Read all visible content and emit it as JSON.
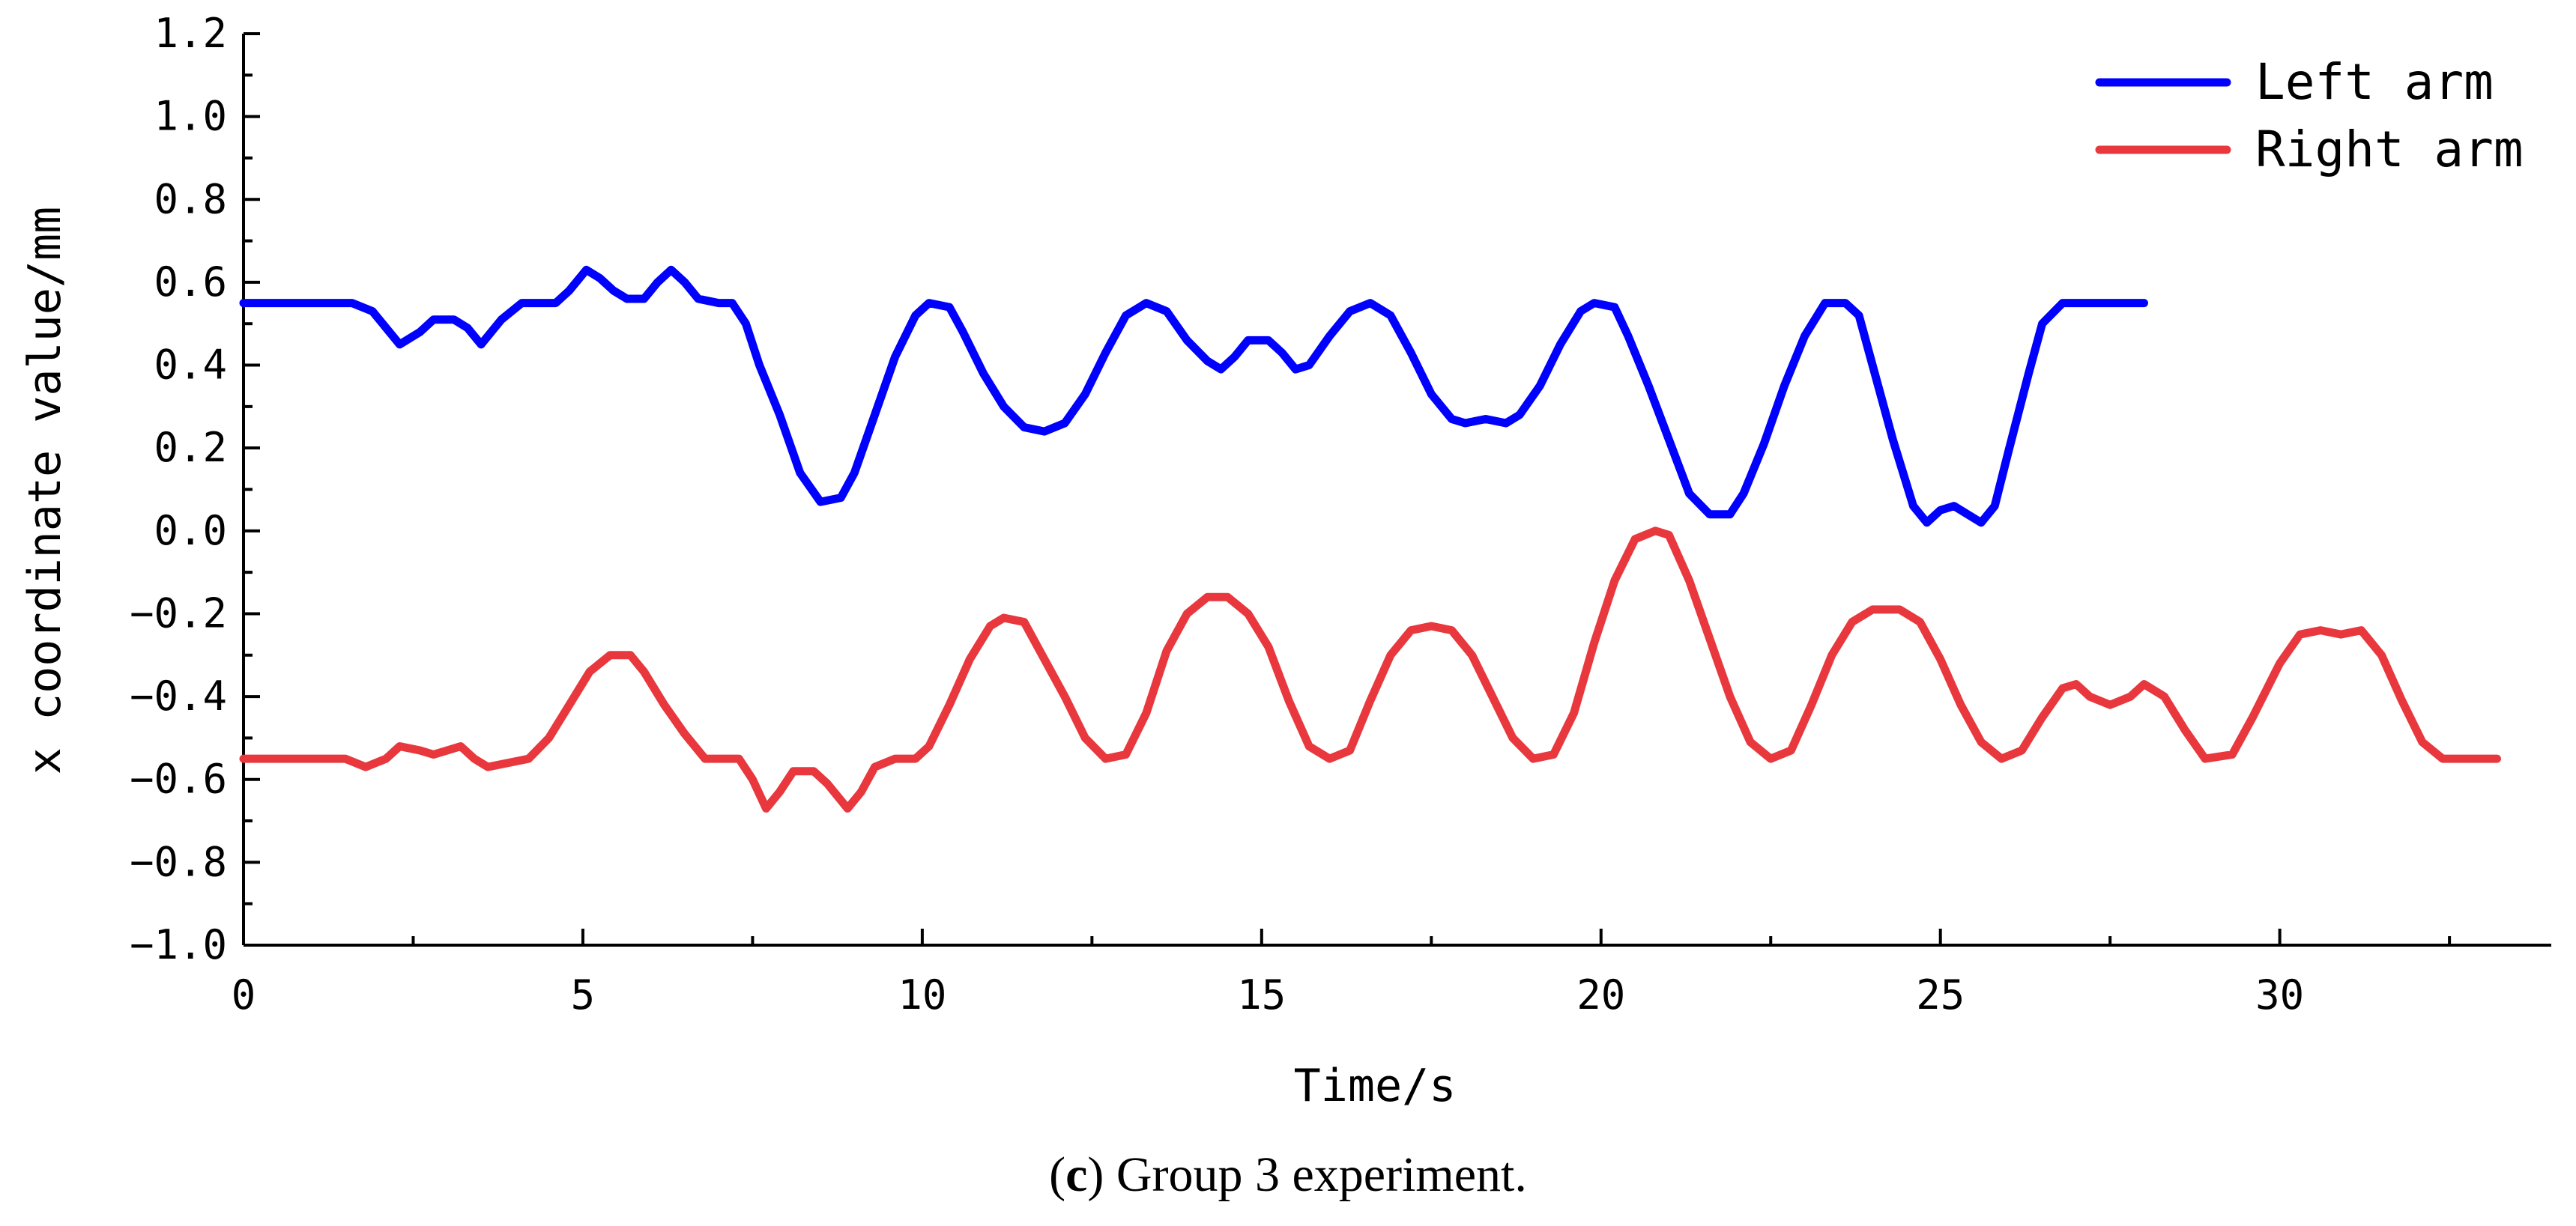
{
  "chart_data": {
    "type": "line",
    "title": "",
    "xlabel": "Time/s",
    "ylabel": "x coordinate value/mm",
    "xlim": [
      0,
      34
    ],
    "ylim": [
      -1.0,
      1.2
    ],
    "x_ticks": [
      0,
      5,
      10,
      15,
      20,
      25,
      30
    ],
    "x_tick_labels": [
      "0",
      "5",
      "10",
      "15",
      "20",
      "25",
      "30"
    ],
    "x_minor_ticks": [
      2.5,
      7.5,
      12.5,
      17.5,
      22.5,
      27.5,
      32.5
    ],
    "y_ticks": [
      -1.0,
      -0.8,
      -0.6,
      -0.4,
      -0.2,
      0.0,
      0.2,
      0.4,
      0.6,
      0.8,
      1.0,
      1.2
    ],
    "y_tick_labels": [
      "−1.0",
      "−0.8",
      "−0.6",
      "−0.4",
      "−0.2",
      "0.0",
      "0.2",
      "0.4",
      "0.6",
      "0.8",
      "1.0",
      "1.2"
    ],
    "y_minor_ticks": [
      -0.9,
      -0.7,
      -0.5,
      -0.3,
      -0.1,
      0.1,
      0.3,
      0.5,
      0.7,
      0.9,
      1.1
    ],
    "grid": false,
    "legend_position": "top-right",
    "series": [
      {
        "name": "Left arm",
        "color": "#0000ff",
        "points": [
          [
            0,
            0.55
          ],
          [
            1.6,
            0.55
          ],
          [
            1.9,
            0.53
          ],
          [
            2.3,
            0.45
          ],
          [
            2.6,
            0.48
          ],
          [
            2.8,
            0.51
          ],
          [
            3.1,
            0.51
          ],
          [
            3.3,
            0.49
          ],
          [
            3.5,
            0.45
          ],
          [
            3.8,
            0.51
          ],
          [
            4.1,
            0.55
          ],
          [
            4.6,
            0.55
          ],
          [
            4.8,
            0.58
          ],
          [
            5.05,
            0.63
          ],
          [
            5.25,
            0.61
          ],
          [
            5.45,
            0.58
          ],
          [
            5.65,
            0.56
          ],
          [
            5.9,
            0.56
          ],
          [
            6.1,
            0.6
          ],
          [
            6.3,
            0.63
          ],
          [
            6.5,
            0.6
          ],
          [
            6.7,
            0.56
          ],
          [
            7.0,
            0.55
          ],
          [
            7.2,
            0.55
          ],
          [
            7.4,
            0.5
          ],
          [
            7.6,
            0.4
          ],
          [
            7.9,
            0.28
          ],
          [
            8.2,
            0.14
          ],
          [
            8.5,
            0.07
          ],
          [
            8.8,
            0.08
          ],
          [
            9.0,
            0.14
          ],
          [
            9.3,
            0.28
          ],
          [
            9.6,
            0.42
          ],
          [
            9.9,
            0.52
          ],
          [
            10.1,
            0.55
          ],
          [
            10.4,
            0.54
          ],
          [
            10.6,
            0.48
          ],
          [
            10.9,
            0.38
          ],
          [
            11.2,
            0.3
          ],
          [
            11.5,
            0.25
          ],
          [
            11.8,
            0.24
          ],
          [
            12.1,
            0.26
          ],
          [
            12.4,
            0.33
          ],
          [
            12.7,
            0.43
          ],
          [
            13.0,
            0.52
          ],
          [
            13.3,
            0.55
          ],
          [
            13.6,
            0.53
          ],
          [
            13.9,
            0.46
          ],
          [
            14.2,
            0.41
          ],
          [
            14.4,
            0.39
          ],
          [
            14.6,
            0.42
          ],
          [
            14.8,
            0.46
          ],
          [
            15.1,
            0.46
          ],
          [
            15.3,
            0.43
          ],
          [
            15.5,
            0.39
          ],
          [
            15.7,
            0.4
          ],
          [
            16.0,
            0.47
          ],
          [
            16.3,
            0.53
          ],
          [
            16.6,
            0.55
          ],
          [
            16.9,
            0.52
          ],
          [
            17.2,
            0.43
          ],
          [
            17.5,
            0.33
          ],
          [
            17.8,
            0.27
          ],
          [
            18.0,
            0.26
          ],
          [
            18.3,
            0.27
          ],
          [
            18.6,
            0.26
          ],
          [
            18.8,
            0.28
          ],
          [
            19.1,
            0.35
          ],
          [
            19.4,
            0.45
          ],
          [
            19.7,
            0.53
          ],
          [
            19.9,
            0.55
          ],
          [
            20.2,
            0.54
          ],
          [
            20.4,
            0.47
          ],
          [
            20.7,
            0.35
          ],
          [
            21.0,
            0.22
          ],
          [
            21.3,
            0.09
          ],
          [
            21.6,
            0.04
          ],
          [
            21.9,
            0.04
          ],
          [
            22.1,
            0.09
          ],
          [
            22.4,
            0.21
          ],
          [
            22.7,
            0.35
          ],
          [
            23.0,
            0.47
          ],
          [
            23.3,
            0.55
          ],
          [
            23.6,
            0.55
          ],
          [
            23.8,
            0.52
          ],
          [
            24.0,
            0.4
          ],
          [
            24.3,
            0.22
          ],
          [
            24.6,
            0.06
          ],
          [
            24.8,
            0.02
          ],
          [
            25.0,
            0.05
          ],
          [
            25.2,
            0.06
          ],
          [
            25.4,
            0.04
          ],
          [
            25.6,
            0.02
          ],
          [
            25.8,
            0.06
          ],
          [
            26.0,
            0.19
          ],
          [
            26.3,
            0.38
          ],
          [
            26.5,
            0.5
          ],
          [
            26.8,
            0.55
          ],
          [
            27.2,
            0.55
          ],
          [
            28.0,
            0.55
          ]
        ]
      },
      {
        "name": "Right arm",
        "color": "#e8383d",
        "points": [
          [
            0,
            -0.55
          ],
          [
            1.5,
            -0.55
          ],
          [
            1.8,
            -0.57
          ],
          [
            2.1,
            -0.55
          ],
          [
            2.3,
            -0.52
          ],
          [
            2.6,
            -0.53
          ],
          [
            2.8,
            -0.54
          ],
          [
            3.0,
            -0.53
          ],
          [
            3.2,
            -0.52
          ],
          [
            3.4,
            -0.55
          ],
          [
            3.6,
            -0.57
          ],
          [
            3.9,
            -0.56
          ],
          [
            4.2,
            -0.55
          ],
          [
            4.5,
            -0.5
          ],
          [
            4.8,
            -0.42
          ],
          [
            5.1,
            -0.34
          ],
          [
            5.4,
            -0.3
          ],
          [
            5.7,
            -0.3
          ],
          [
            5.9,
            -0.34
          ],
          [
            6.2,
            -0.42
          ],
          [
            6.5,
            -0.49
          ],
          [
            6.8,
            -0.55
          ],
          [
            7.3,
            -0.55
          ],
          [
            7.5,
            -0.6
          ],
          [
            7.7,
            -0.67
          ],
          [
            7.9,
            -0.63
          ],
          [
            8.1,
            -0.58
          ],
          [
            8.4,
            -0.58
          ],
          [
            8.6,
            -0.61
          ],
          [
            8.9,
            -0.67
          ],
          [
            9.1,
            -0.63
          ],
          [
            9.3,
            -0.57
          ],
          [
            9.6,
            -0.55
          ],
          [
            9.9,
            -0.55
          ],
          [
            10.1,
            -0.52
          ],
          [
            10.4,
            -0.42
          ],
          [
            10.7,
            -0.31
          ],
          [
            11.0,
            -0.23
          ],
          [
            11.2,
            -0.21
          ],
          [
            11.5,
            -0.22
          ],
          [
            11.8,
            -0.31
          ],
          [
            12.1,
            -0.4
          ],
          [
            12.4,
            -0.5
          ],
          [
            12.7,
            -0.55
          ],
          [
            13.0,
            -0.54
          ],
          [
            13.3,
            -0.44
          ],
          [
            13.6,
            -0.29
          ],
          [
            13.9,
            -0.2
          ],
          [
            14.2,
            -0.16
          ],
          [
            14.5,
            -0.16
          ],
          [
            14.8,
            -0.2
          ],
          [
            15.1,
            -0.28
          ],
          [
            15.4,
            -0.41
          ],
          [
            15.7,
            -0.52
          ],
          [
            16.0,
            -0.55
          ],
          [
            16.3,
            -0.53
          ],
          [
            16.6,
            -0.41
          ],
          [
            16.9,
            -0.3
          ],
          [
            17.2,
            -0.24
          ],
          [
            17.5,
            -0.23
          ],
          [
            17.8,
            -0.24
          ],
          [
            18.1,
            -0.3
          ],
          [
            18.4,
            -0.4
          ],
          [
            18.7,
            -0.5
          ],
          [
            19.0,
            -0.55
          ],
          [
            19.3,
            -0.54
          ],
          [
            19.6,
            -0.44
          ],
          [
            19.9,
            -0.27
          ],
          [
            20.2,
            -0.12
          ],
          [
            20.5,
            -0.02
          ],
          [
            20.8,
            0.0
          ],
          [
            21.0,
            -0.01
          ],
          [
            21.3,
            -0.12
          ],
          [
            21.6,
            -0.26
          ],
          [
            21.9,
            -0.4
          ],
          [
            22.2,
            -0.51
          ],
          [
            22.5,
            -0.55
          ],
          [
            22.8,
            -0.53
          ],
          [
            23.1,
            -0.42
          ],
          [
            23.4,
            -0.3
          ],
          [
            23.7,
            -0.22
          ],
          [
            24.0,
            -0.19
          ],
          [
            24.4,
            -0.19
          ],
          [
            24.7,
            -0.22
          ],
          [
            25.0,
            -0.31
          ],
          [
            25.3,
            -0.42
          ],
          [
            25.6,
            -0.51
          ],
          [
            25.9,
            -0.55
          ],
          [
            26.2,
            -0.53
          ],
          [
            26.5,
            -0.45
          ],
          [
            26.8,
            -0.38
          ],
          [
            27.0,
            -0.37
          ],
          [
            27.2,
            -0.4
          ],
          [
            27.5,
            -0.42
          ],
          [
            27.8,
            -0.4
          ],
          [
            28.0,
            -0.37
          ],
          [
            28.3,
            -0.4
          ],
          [
            28.6,
            -0.48
          ],
          [
            28.9,
            -0.55
          ],
          [
            29.3,
            -0.54
          ],
          [
            29.6,
            -0.45
          ],
          [
            30.0,
            -0.32
          ],
          [
            30.3,
            -0.25
          ],
          [
            30.6,
            -0.24
          ],
          [
            30.9,
            -0.25
          ],
          [
            31.2,
            -0.24
          ],
          [
            31.5,
            -0.3
          ],
          [
            31.8,
            -0.41
          ],
          [
            32.1,
            -0.51
          ],
          [
            32.4,
            -0.55
          ],
          [
            33.2,
            -0.55
          ]
        ]
      }
    ]
  },
  "caption": {
    "open_paren": "(",
    "letter": "c",
    "rest": ") Group 3 experiment."
  }
}
